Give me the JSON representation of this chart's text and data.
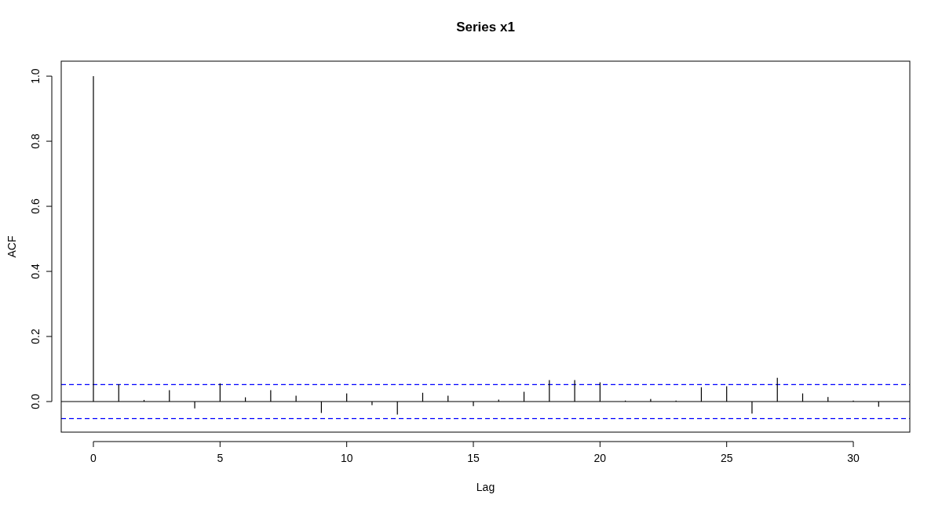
{
  "chart_data": {
    "type": "bar",
    "title": "Series  x1",
    "xlabel": "Lag",
    "ylabel": "ACF",
    "x": [
      0,
      1,
      2,
      3,
      4,
      5,
      6,
      7,
      8,
      9,
      10,
      11,
      12,
      13,
      14,
      15,
      16,
      17,
      18,
      19,
      20,
      21,
      22,
      23,
      24,
      25,
      26,
      27,
      28,
      29,
      30,
      31
    ],
    "values": [
      1,
      0.053,
      0.005,
      0.035,
      -0.021,
      0.056,
      0.013,
      0.035,
      0.018,
      -0.035,
      0.025,
      -0.011,
      -0.04,
      0.027,
      0.018,
      -0.014,
      0.006,
      0.03,
      0.066,
      0.066,
      0.059,
      0.003,
      0.008,
      0.003,
      0.044,
      0.047,
      -0.037,
      0.073,
      0.025,
      0.014,
      0.003,
      -0.016
    ],
    "color": "#000000",
    "xlim": [
      -1.27,
      32.23
    ],
    "xticks": [
      0,
      5,
      10,
      15,
      20,
      25,
      30
    ],
    "ylim": [
      -0.094,
      1.046
    ],
    "yticks": [
      {
        "value": 0,
        "label": "0.0"
      },
      {
        "value": 0.2,
        "label": "0.2"
      },
      {
        "value": 0.4,
        "label": "0.4"
      },
      {
        "value": 0.6,
        "label": "0.6"
      },
      {
        "value": 0.8,
        "label": "0.8"
      },
      {
        "value": 1,
        "label": "1.0"
      }
    ],
    "ref_lines": [
      {
        "axis": "y",
        "value": 0,
        "color": "#000000",
        "line_style": "solid"
      },
      {
        "axis": "y",
        "value": 0.052,
        "color": "#0000ff",
        "line_style": "dashed"
      },
      {
        "axis": "y",
        "value": -0.052,
        "color": "#0000ff",
        "line_style": "dashed"
      }
    ],
    "grid": false
  }
}
